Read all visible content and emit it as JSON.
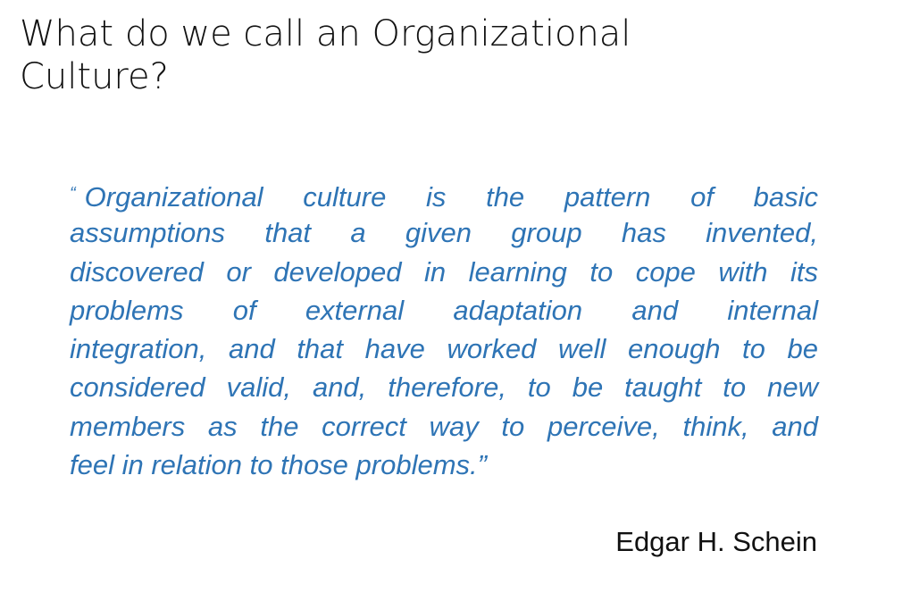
{
  "slide": {
    "title_lines": [
      "What do we call an Organizational",
      "Culture?"
    ],
    "quote": {
      "open_mark": "“",
      "lines": [
        "Organizational culture is the pattern of basic",
        "assumptions that a given group has invented,",
        "discovered or developed in learning to cope with its",
        "problems of external adaptation and internal",
        "integration, and that have worked well enough to be",
        "considered valid, and,  therefore, to be taught to new",
        "members as  the correct way to perceive, think, and",
        "feel in  relation to those problems.”"
      ]
    },
    "author": "Edgar H. Schein"
  },
  "colors": {
    "quote_text": "#2e74b5",
    "title_text": "#111111",
    "background": "#ffffff"
  }
}
